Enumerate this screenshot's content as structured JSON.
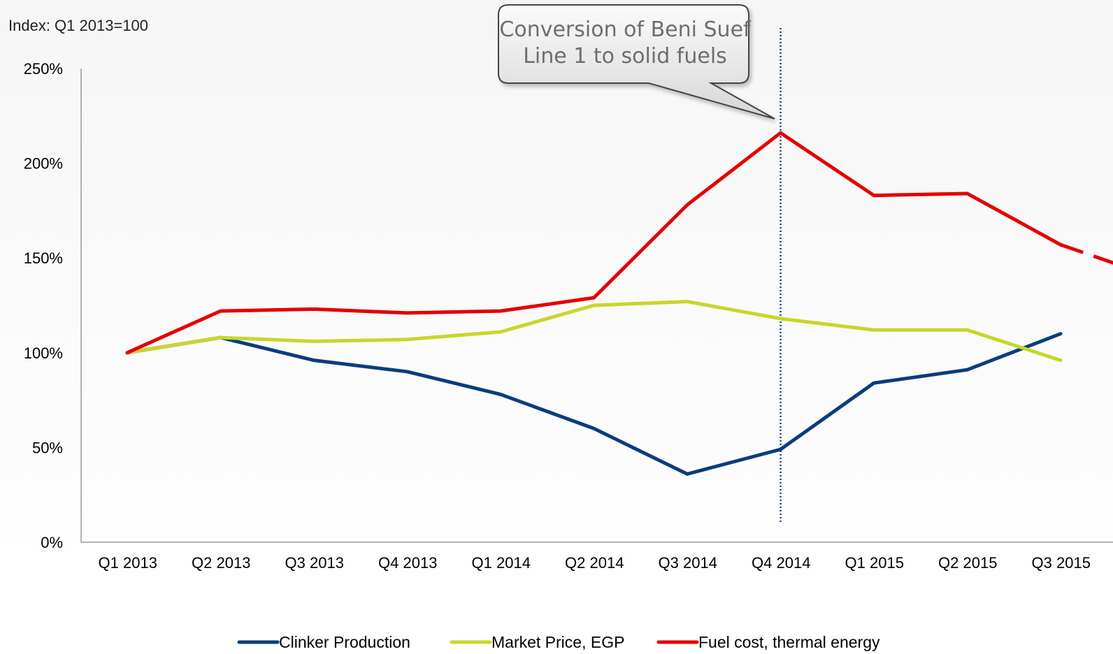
{
  "chart_data": {
    "type": "line",
    "index_label": "Index: Q1 2013=100",
    "categories": [
      "Q1 2013",
      "Q2 2013",
      "Q3 2013",
      "Q4 2013",
      "Q1 2014",
      "Q2 2014",
      "Q3 2014",
      "Q4 2014",
      "Q1 2015",
      "Q2 2015",
      "Q3 2015"
    ],
    "y_ticks": [
      "0%",
      "50%",
      "100%",
      "150%",
      "200%",
      "250%"
    ],
    "ylim": [
      0,
      250
    ],
    "grid": false,
    "legend_position": "bottom",
    "series": [
      {
        "name": "Clinker Production",
        "color": "#0b3c7d",
        "values": [
          100,
          108,
          96,
          90,
          78,
          60,
          36,
          49,
          84,
          91,
          110
        ]
      },
      {
        "name": "Market Price, EGP",
        "color": "#c8d62b",
        "values": [
          100,
          108,
          106,
          107,
          111,
          125,
          127,
          118,
          112,
          112,
          96
        ]
      },
      {
        "name": "Fuel cost, thermal energy",
        "color": "#e60000",
        "values": [
          100,
          122,
          123,
          121,
          122,
          129,
          178,
          216,
          183,
          184,
          157
        ],
        "dashed_extension_to": 140
      }
    ],
    "annotation": {
      "text_lines": [
        "Conversion of Beni Suef",
        "Line 1 to solid fuels"
      ],
      "at_category": "Q4 2014",
      "line_style": "dotted-vertical"
    }
  }
}
